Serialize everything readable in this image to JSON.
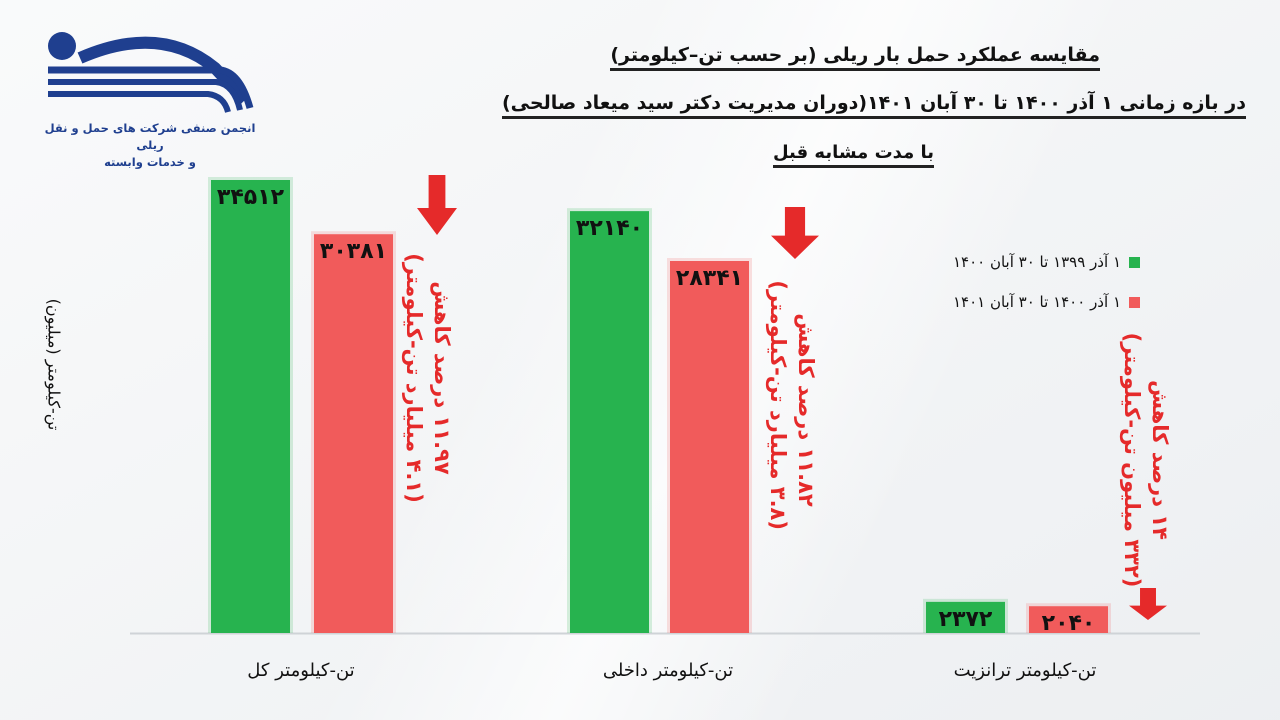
{
  "header": {
    "title_line1": "مقایسه عملکرد حمل بار ریلی (بر حسب تن–کیلومتر)",
    "title_line2": "در بازه زمانی ۱ آذر ۱۴۰۰ تا ۳۰ آبان ۱۴۰۱(دوران مدیریت دکتر سید میعاد صالحی)",
    "title_line3": "با مدت مشابه قبل"
  },
  "logo": {
    "caption_line1": "انجمن صنفی شرکت های حمل و نقل ریلی",
    "caption_line2": "و خدمات وابسته",
    "colors": {
      "primary": "#1f3f8f"
    }
  },
  "chart_data": {
    "type": "bar",
    "categories": [
      "تن-کیلومتر کل",
      "تن-کیلومتر داخلی",
      "تن-کیلومتر ترانزیت"
    ],
    "series": [
      {
        "name": "۱ آذر ۱۳۹۹ تا ۳۰ آبان ۱۴۰۰",
        "values": [
          34512,
          32140,
          2372
        ],
        "labels": [
          "۳۴۵۱۲",
          "۳۲۱۴۰",
          "۲۳۷۲"
        ],
        "color": "#27b34f"
      },
      {
        "name": "۱ آذر ۱۴۰۰ تا ۳۰ آبان ۱۴۰۱",
        "values": [
          30381,
          28341,
          2040
        ],
        "labels": [
          "۳۰۳۸۱",
          "۲۸۳۴۱",
          "۲۰۴۰"
        ],
        "color": "#f15b5b"
      }
    ],
    "ylabel": "تن-کیلومتر (میلیون)",
    "xlabel": "",
    "ylim": [
      0,
      34512
    ],
    "grid": false,
    "legend_position": "right",
    "annotations": [
      {
        "line1": "۱۱.۹۷ درصد کاهش",
        "line2": "(۴.۱ میلیارد تن-کیلومتر)"
      },
      {
        "line1": "۱۱.۸۲ درصد کاهش",
        "line2": "(۳.۸ میلیارد تن-کیلومتر)"
      },
      {
        "line1": "۱۴ درصد کاهش",
        "line2": "(۳۳۲ میلیون تن-کیلومتر)"
      }
    ],
    "colors": {
      "decrease": "#e52a2a",
      "baseline": "#cfd3d7"
    }
  }
}
